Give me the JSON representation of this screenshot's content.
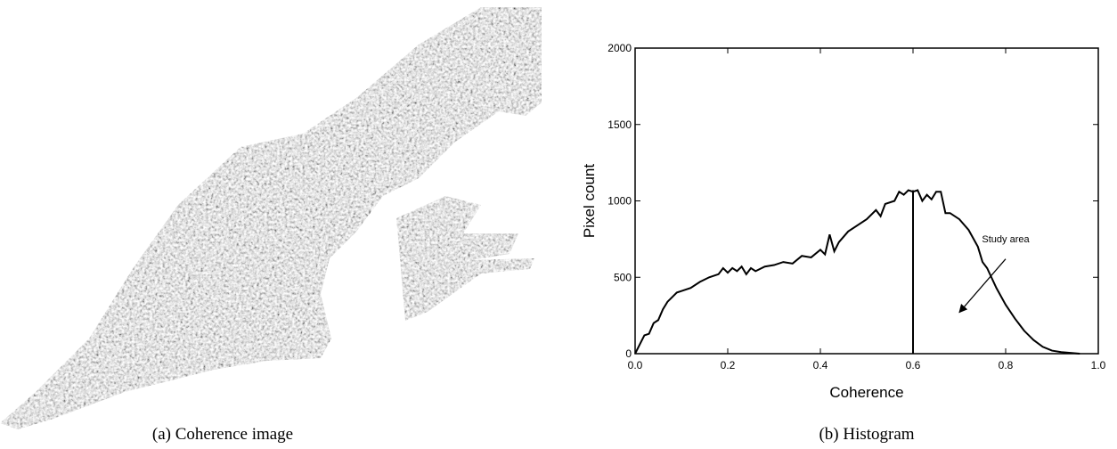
{
  "captions": [
    "(a) Coherence image",
    "(b) Histogram"
  ],
  "chart_data": {
    "type": "line",
    "xlabel": "Coherence",
    "ylabel": "Pixel count",
    "x": [
      0,
      0.01,
      0.02,
      0.03,
      0.04,
      0.05,
      0.06,
      0.07,
      0.08,
      0.09,
      0.1,
      0.12,
      0.14,
      0.16,
      0.18,
      0.19,
      0.2,
      0.21,
      0.22,
      0.23,
      0.24,
      0.25,
      0.26,
      0.28,
      0.3,
      0.32,
      0.34,
      0.36,
      0.38,
      0.4,
      0.41,
      0.42,
      0.43,
      0.44,
      0.46,
      0.48,
      0.5,
      0.52,
      0.53,
      0.54,
      0.56,
      0.57,
      0.58,
      0.59,
      0.6,
      0.61,
      0.62,
      0.63,
      0.64,
      0.65,
      0.66,
      0.67,
      0.68,
      0.7,
      0.72,
      0.74,
      0.75,
      0.76,
      0.78,
      0.8,
      0.82,
      0.84,
      0.86,
      0.88,
      0.9,
      0.92,
      0.94,
      0.96
    ],
    "values": [
      0,
      60,
      120,
      130,
      200,
      220,
      290,
      340,
      370,
      400,
      410,
      430,
      470,
      500,
      520,
      560,
      530,
      560,
      540,
      570,
      520,
      560,
      540,
      570,
      580,
      600,
      590,
      640,
      630,
      680,
      650,
      780,
      670,
      730,
      800,
      840,
      880,
      940,
      900,
      980,
      1000,
      1060,
      1040,
      1070,
      1060,
      1070,
      1000,
      1040,
      1010,
      1060,
      1060,
      920,
      920,
      880,
      810,
      700,
      600,
      560,
      430,
      320,
      230,
      150,
      90,
      45,
      20,
      10,
      5,
      0
    ],
    "color": "#000000",
    "xlim": [
      0,
      1
    ],
    "ylim": [
      0,
      2000
    ],
    "xticks": [
      {
        "value": 0,
        "label": "0.0"
      },
      0.2,
      0.4,
      0.6,
      0.8,
      {
        "value": 1,
        "label": "1.0"
      }
    ],
    "yticks": [
      0,
      500,
      1000,
      1500,
      2000
    ],
    "vline": {
      "x": 0.6,
      "top": 1070
    },
    "annotation": {
      "text": "Study area",
      "x": 0.8,
      "y": 730,
      "arrow_from": [
        0.8,
        620
      ],
      "arrow_to": [
        0.7,
        270
      ]
    }
  }
}
